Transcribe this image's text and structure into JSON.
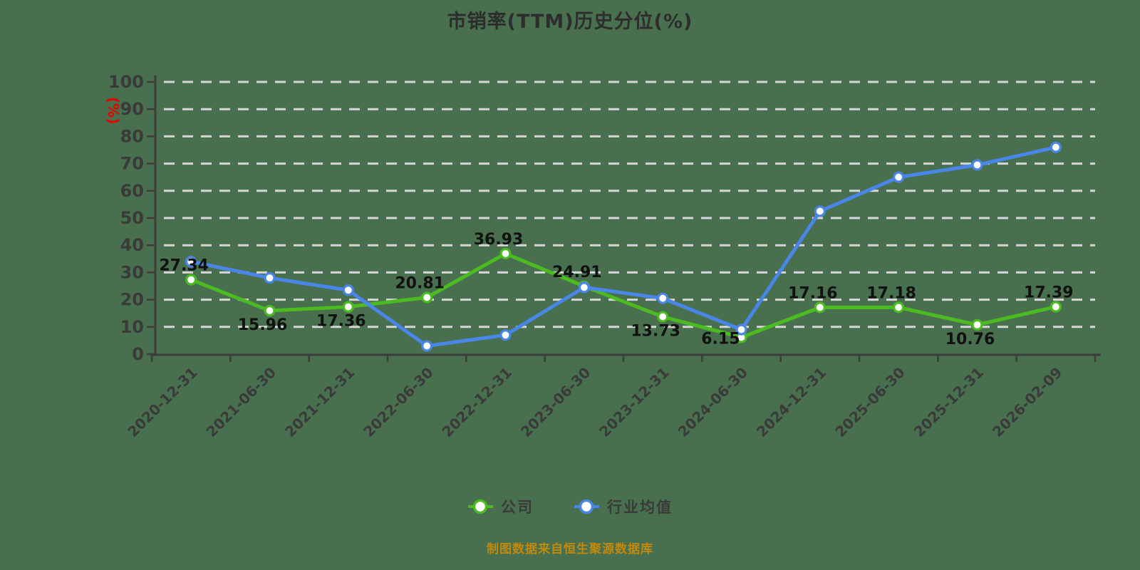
{
  "page": {
    "background_color": "#48704E"
  },
  "title": "市销率(TTM)历史分位(%)",
  "footer": {
    "text": "制图数据来自恒生聚源数据库",
    "color": "#C0890F"
  },
  "legend": {
    "items": [
      {
        "id": "company",
        "label": "公司",
        "color": "#4CBA21"
      },
      {
        "id": "industry",
        "label": "行业均值",
        "color": "#4A86E8"
      }
    ]
  },
  "chart_data": {
    "type": "line",
    "title": "市销率(TTM)历史分位(%)",
    "ylabel": "(%)",
    "ylabel_color": "#E60000",
    "ylim": [
      0,
      100
    ],
    "yticks": [
      0,
      10,
      20,
      30,
      40,
      50,
      60,
      70,
      80,
      90,
      100
    ],
    "grid": "horizontal-dashed-white",
    "grid_color": "#D6D6D6",
    "axis_color": "#3C3C3C",
    "legend_position": "bottom",
    "categories": [
      "2020-12-31",
      "2021-06-30",
      "2021-12-31",
      "2022-06-30",
      "2022-12-31",
      "2023-06-30",
      "2023-12-31",
      "2024-06-30",
      "2024-12-31",
      "2025-06-30",
      "2025-12-31",
      "2026-02-09"
    ],
    "series": [
      {
        "id": "company",
        "name": "公司",
        "color": "#4CBA21",
        "values": [
          27.34,
          15.96,
          17.36,
          20.81,
          36.93,
          24.91,
          13.73,
          6.15,
          17.16,
          17.18,
          10.76,
          17.39
        ],
        "show_labels": true,
        "label_positions": [
          "top",
          "bottom",
          "bottom",
          "top",
          "top",
          "top",
          "bottom",
          "left",
          "top",
          "top",
          "bottom",
          "top"
        ]
      },
      {
        "id": "industry",
        "name": "行业均值",
        "color": "#4A86E8",
        "values": [
          34,
          28,
          23.5,
          3,
          7,
          24.5,
          20.5,
          9,
          52.5,
          65,
          69.5,
          76
        ],
        "show_labels": false
      }
    ]
  }
}
